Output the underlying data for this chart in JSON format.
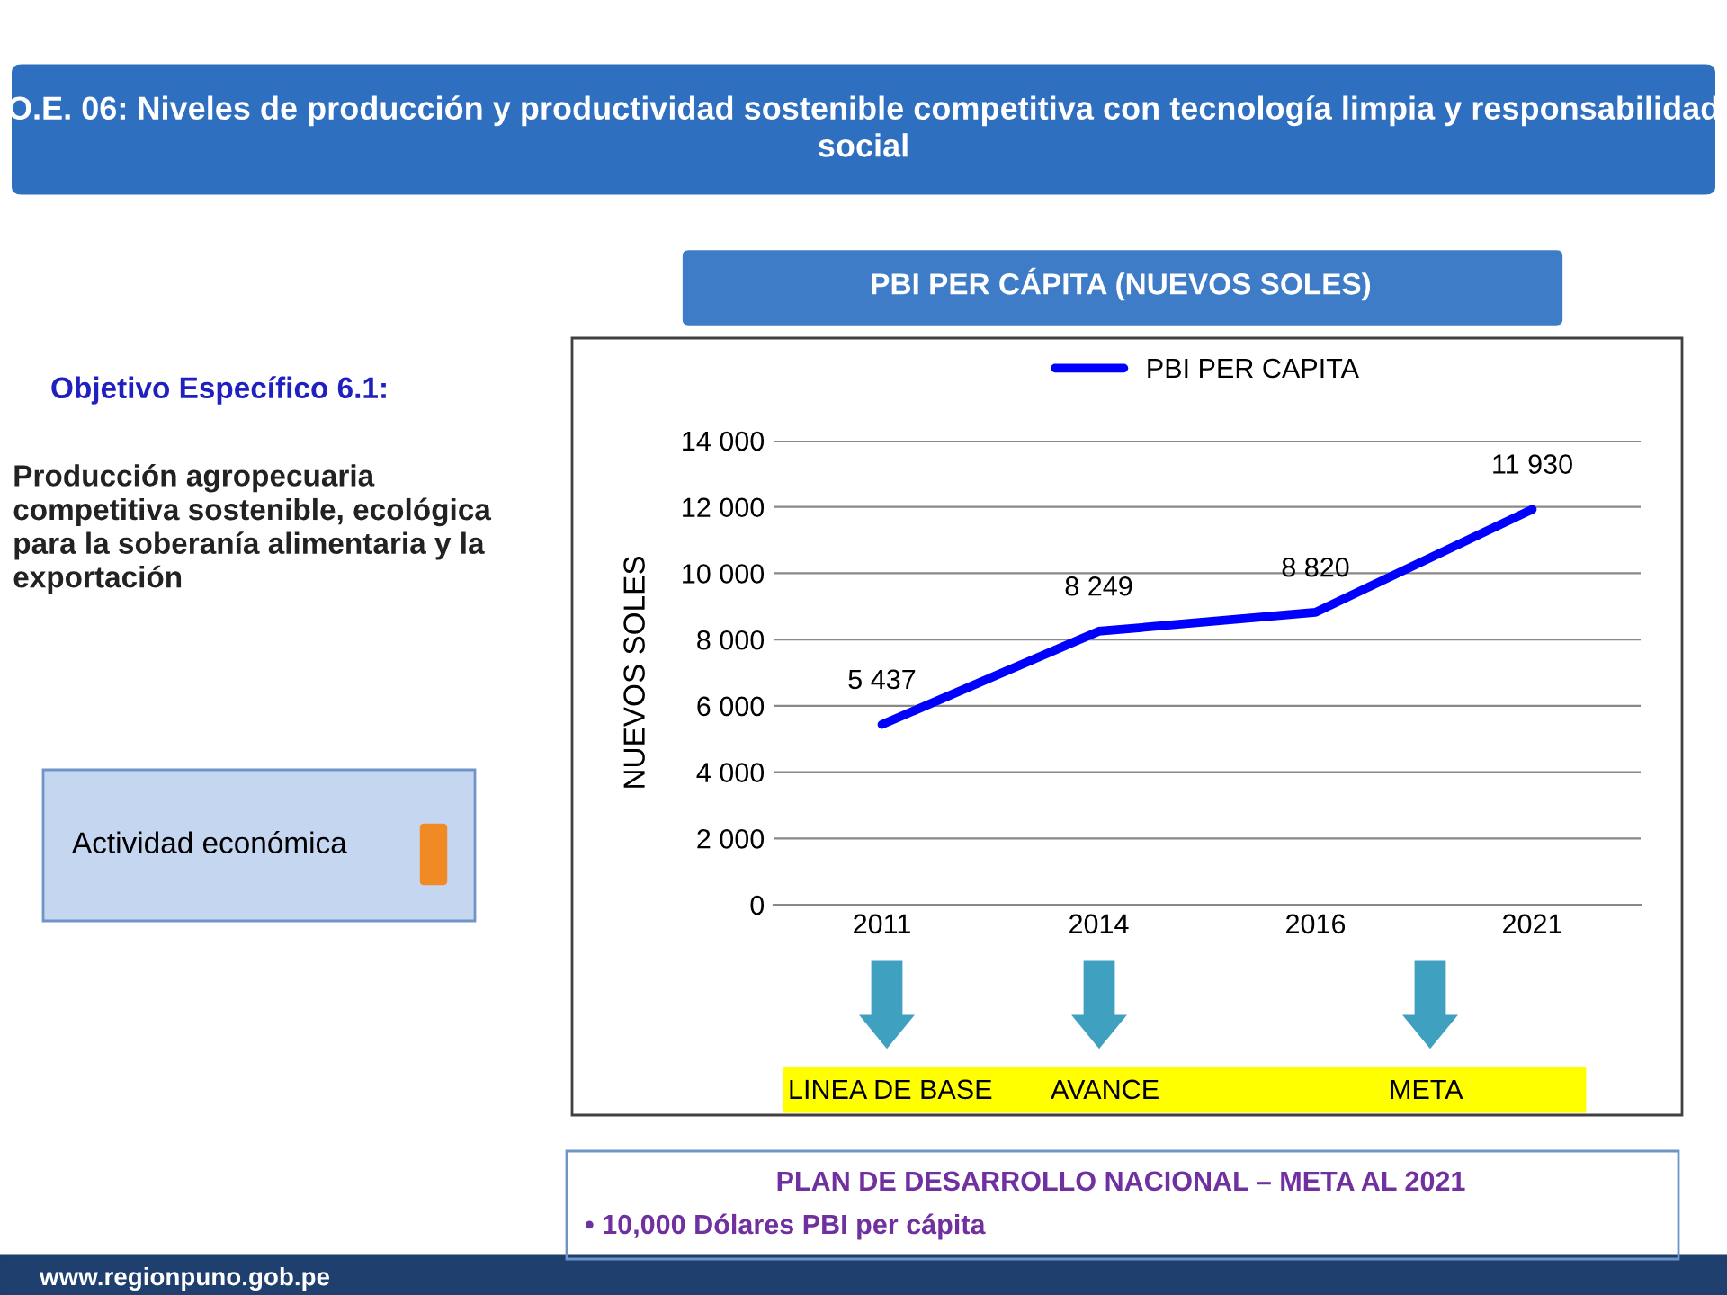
{
  "chart_data": {
    "type": "line",
    "title": "PBI PER CÁPITA (NUEVOS SOLES)",
    "ylabel": "NUEVOS SOLES",
    "categories": [
      "2011",
      "2014",
      "2016",
      "2021"
    ],
    "series": [
      {
        "name": "PBI PER CAPITA",
        "color": "#0000ff",
        "values": [
          5437,
          8249,
          8820,
          11930
        ],
        "value_labels": [
          "5 437",
          "8 249",
          "8 820",
          "11 930"
        ]
      }
    ],
    "ylim": [
      0,
      14000
    ],
    "yticks": [
      0,
      {
        "value": 2000,
        "label": "2 000"
      },
      {
        "value": 4000,
        "label": "4 000"
      },
      {
        "value": 6000,
        "label": "6 000"
      },
      {
        "value": 8000,
        "label": "8 000"
      },
      {
        "value": 10000,
        "label": "10 000"
      },
      {
        "value": 12000,
        "label": "12 000"
      },
      {
        "value": 14000,
        "label": "14 000"
      }
    ],
    "grid": "y",
    "legend": "top",
    "marker": "none",
    "line_style": "solid",
    "annotations": [
      "O.E. 06: Niveles de producción y productividad sostenible competitiva con tecnología limpia y responsabilidad social",
      "Objetivo Específico 6.1:",
      "Producción agropecuaria competitiva sostenible, ecológica para la soberanía alimentaria y la exportación",
      "Actividad económica",
      "LINEA DE BASE",
      "AVANCE",
      "META",
      "PLAN DE DESARROLLO NACIONAL – META AL 2021",
      "• 10,000 Dólares PBI per cápita",
      "www.regionpuno.gob.pe"
    ]
  }
}
